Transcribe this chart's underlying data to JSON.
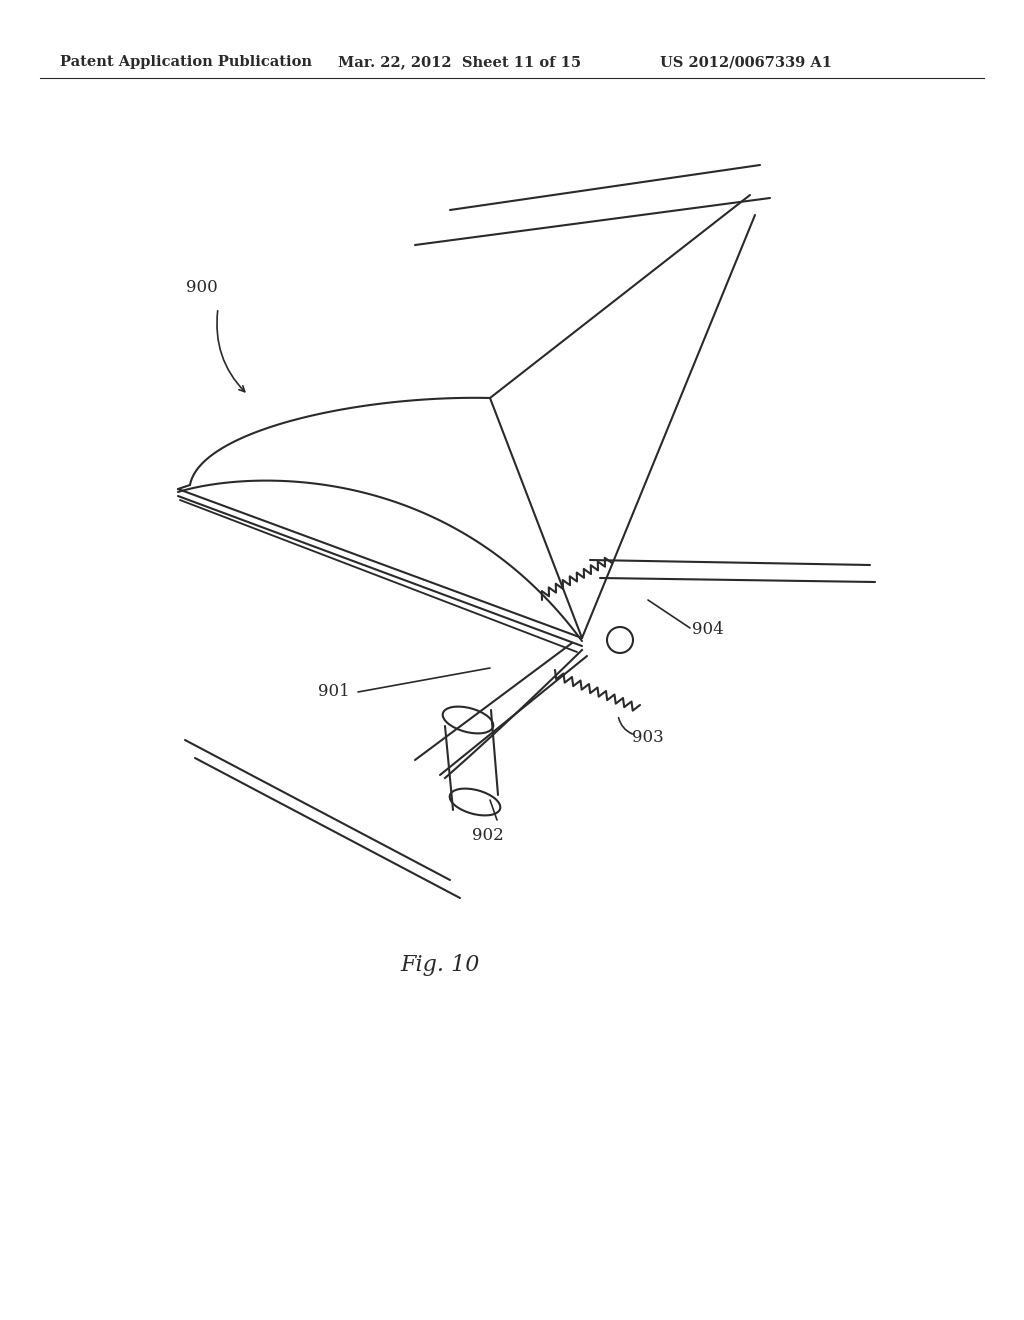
{
  "title_left": "Patent Application Publication",
  "title_mid": "Mar. 22, 2012  Sheet 11 of 15",
  "title_right": "US 2012/0067339 A1",
  "fig_label": "Fig. 10",
  "label_900": "900",
  "label_901": "901",
  "label_902": "902",
  "label_903": "903",
  "label_904": "904",
  "bg_color": "#ffffff",
  "line_color": "#2a2a2a",
  "line_width": 1.5,
  "font_size_header": 10.5,
  "font_size_label": 12,
  "font_size_fig": 16
}
